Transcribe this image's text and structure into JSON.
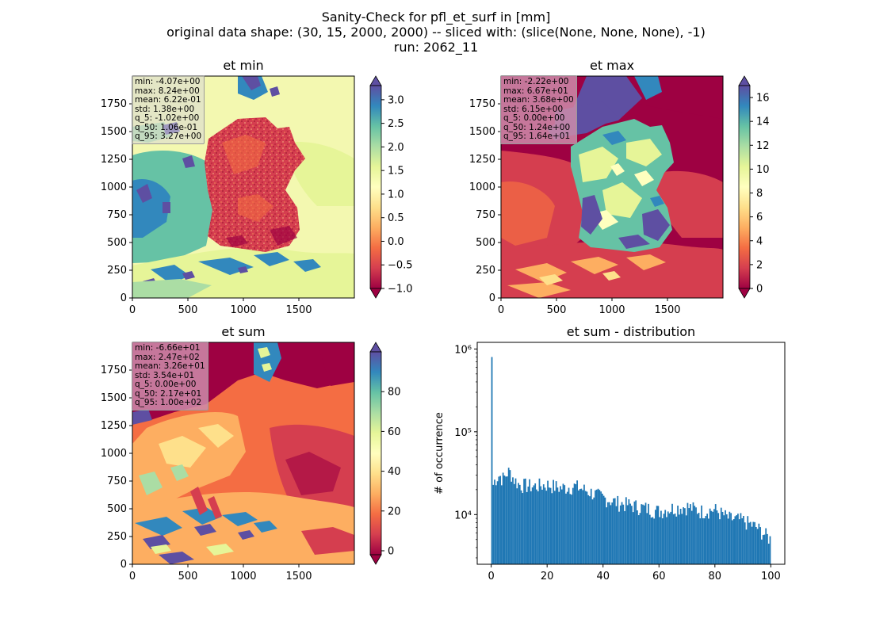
{
  "figure": {
    "title_lines": [
      "Sanity-Check for pfl_et_surf in [mm]",
      "original data shape: (30, 15, 2000, 2000) -- sliced with: (slice(None, None, None), -1)",
      "run: 2062_11"
    ]
  },
  "colors": {
    "histogram_bar": "#1f77b4",
    "colormap": "Spectral",
    "colormap_stops": [
      "#9e0142",
      "#d53e4f",
      "#f46d43",
      "#fdae61",
      "#fee08b",
      "#ffffbf",
      "#e6f598",
      "#abdda4",
      "#66c2a5",
      "#3288bd",
      "#5e4fa2"
    ]
  },
  "panels": {
    "et_min": {
      "title": "et min",
      "stats": [
        "min: -4.07e+00",
        "max: 8.24e+00",
        "mean: 6.22e-01",
        "std: 1.38e+00",
        "q_5: -1.02e+00",
        "q_50: 1.06e-01",
        "q_95: 3.27e+00"
      ]
    },
    "et_max": {
      "title": "et max",
      "stats": [
        "min: -2.22e+00",
        "max: 6.67e+01",
        "mean: 3.68e+00",
        "std: 6.15e+00",
        "q_5: 0.00e+00",
        "q_50: 1.24e+00",
        "q_95: 1.64e+01"
      ]
    },
    "et_sum": {
      "title": "et sum",
      "stats": [
        "min: -6.66e+01",
        "max: 2.47e+02",
        "mean: 3.26e+01",
        "std: 3.54e+01",
        "q_5: 0.00e+00",
        "q_50: 2.17e+01",
        "q_95: 1.00e+02"
      ]
    },
    "et_sum_distribution": {
      "title": "et sum - distribution",
      "ylabel": "# of occurrence"
    }
  },
  "chart_data": [
    {
      "type": "heatmap",
      "title": "et min",
      "xlim": [
        0,
        2000
      ],
      "ylim": [
        0,
        2000
      ],
      "xticks": [
        0,
        500,
        1000,
        1500
      ],
      "yticks": [
        0,
        250,
        500,
        750,
        1000,
        1250,
        1500,
        1750
      ],
      "colorbar": {
        "vmin": -1.0,
        "vmax": 3.3,
        "ticks": [
          -1.0,
          -0.5,
          0.0,
          0.5,
          1.0,
          1.5,
          2.0,
          2.5,
          3.0
        ],
        "tick_labels": [
          "−1.0",
          "−0.5",
          "0.0",
          "0.5",
          "1.0",
          "1.5",
          "2.0",
          "2.5",
          "3.0"
        ],
        "extend": "both"
      }
    },
    {
      "type": "heatmap",
      "title": "et max",
      "xlim": [
        0,
        2000
      ],
      "ylim": [
        0,
        2000
      ],
      "xticks": [
        0,
        500,
        1000,
        1500
      ],
      "yticks": [
        0,
        250,
        500,
        750,
        1000,
        1250,
        1500,
        1750
      ],
      "colorbar": {
        "vmin": 0,
        "vmax": 17,
        "ticks": [
          0,
          2,
          4,
          6,
          8,
          10,
          12,
          14,
          16
        ],
        "tick_labels": [
          "0",
          "2",
          "4",
          "6",
          "8",
          "10",
          "12",
          "14",
          "16"
        ],
        "extend": "both"
      }
    },
    {
      "type": "heatmap",
      "title": "et sum",
      "xlim": [
        0,
        2000
      ],
      "ylim": [
        0,
        2000
      ],
      "xticks": [
        0,
        500,
        1000,
        1500
      ],
      "yticks": [
        0,
        250,
        500,
        750,
        1000,
        1250,
        1500,
        1750
      ],
      "colorbar": {
        "vmin": -2,
        "vmax": 100,
        "ticks": [
          0,
          20,
          40,
          60,
          80
        ],
        "tick_labels": [
          "0",
          "20",
          "40",
          "60",
          "80"
        ],
        "extend": "both"
      }
    },
    {
      "type": "bar",
      "title": "et sum - distribution",
      "xlabel": "",
      "ylabel": "# of occurrence",
      "xlim": [
        -5,
        105
      ],
      "ylim_log10": [
        3.4,
        6.08
      ],
      "yscale": "log",
      "xticks": [
        0,
        20,
        40,
        60,
        80,
        100
      ],
      "yticks": [
        10000,
        100000,
        1000000
      ],
      "ytick_labels": [
        "10⁴",
        "10⁵",
        "10⁶"
      ],
      "bin_width": 0.5,
      "first_bin_count": 800000,
      "y_anchors_x": [
        0.5,
        1,
        2,
        3,
        4,
        5,
        6,
        7,
        8,
        10,
        15,
        20,
        25,
        30,
        35,
        40,
        45,
        50,
        55,
        60,
        65,
        70,
        75,
        80,
        85,
        90,
        95,
        100
      ],
      "y_anchors_count": [
        21000,
        25000,
        28000,
        30000,
        27000,
        29000,
        33000,
        32000,
        27000,
        23000,
        22000,
        23000,
        21000,
        22000,
        19000,
        16000,
        14000,
        13000,
        12000,
        11000,
        12000,
        12500,
        11000,
        11500,
        9000,
        8500,
        7000,
        5000
      ]
    }
  ]
}
